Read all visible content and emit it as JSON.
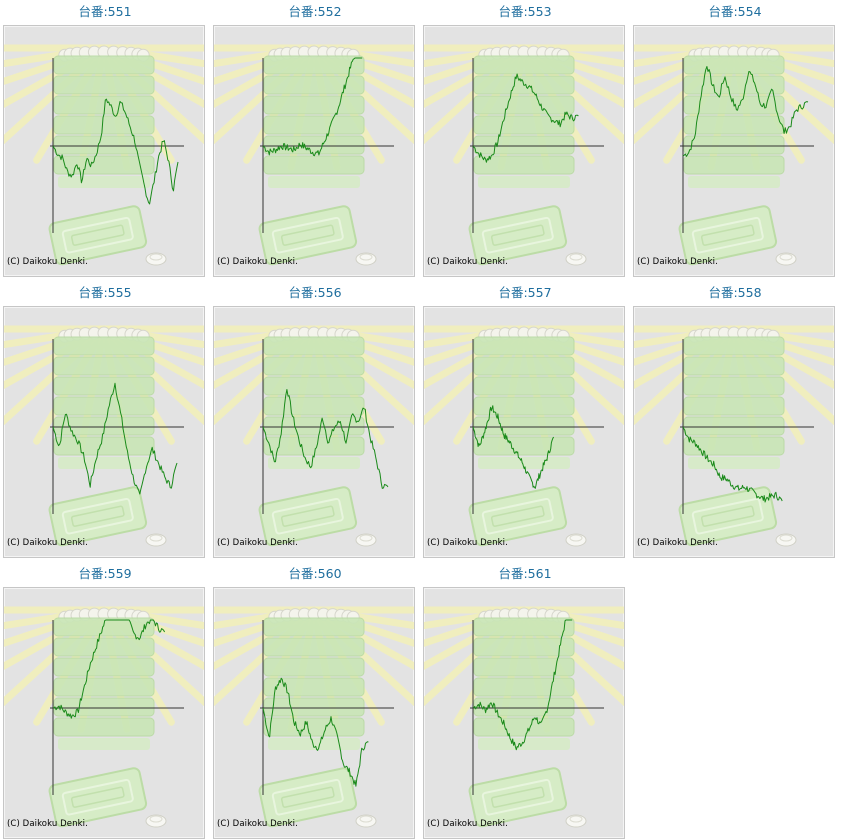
{
  "machines": [
    {
      "label": "台番:551",
      "trend": [
        0,
        -8,
        -12,
        -26,
        -30,
        -16,
        -36,
        -12,
        -20,
        -8,
        10,
        48,
        40,
        30,
        44,
        34,
        20,
        6,
        -20,
        -40,
        -58,
        -36,
        -10,
        6,
        -14,
        -44,
        -16
      ]
    },
    {
      "label": "台番:552",
      "trend": [
        0,
        -6,
        -4,
        0,
        -2,
        -4,
        2,
        -2,
        -6,
        -8,
        6,
        20,
        36,
        56,
        76,
        96,
        110
      ]
    },
    {
      "label": "台番:553",
      "trend": [
        0,
        -8,
        -14,
        -10,
        4,
        28,
        50,
        70,
        64,
        60,
        52,
        40,
        30,
        26,
        22,
        32,
        28,
        30
      ]
    },
    {
      "label": "台番:554",
      "trend": [
        -10,
        -6,
        10,
        50,
        82,
        60,
        48,
        70,
        50,
        36,
        46,
        76,
        64,
        42,
        40,
        56,
        30,
        14,
        20,
        36,
        40,
        44
      ]
    },
    {
      "label": "台番:555",
      "trend": [
        0,
        -20,
        14,
        -4,
        -14,
        -30,
        -58,
        -30,
        -10,
        20,
        44,
        10,
        -26,
        -52,
        -70,
        -40,
        -22,
        -36,
        -50,
        -60,
        -36
      ]
    },
    {
      "label": "台番:556",
      "trend": [
        0,
        -16,
        -36,
        -8,
        40,
        10,
        -12,
        -30,
        -40,
        -20,
        10,
        -16,
        0,
        6,
        -16,
        12,
        6,
        20,
        -10,
        -32,
        -58,
        -60
      ]
    },
    {
      "label": "台番:557",
      "trend": [
        0,
        -20,
        -2,
        20,
        10,
        -8,
        -16,
        -26,
        -36,
        -50,
        -60,
        -44,
        -30,
        -10
      ]
    },
    {
      "label": "台番:558",
      "trend": [
        0,
        -12,
        -16,
        -24,
        -32,
        -38,
        -50,
        -52,
        -58,
        -62,
        -60,
        -64,
        -68,
        -72,
        -70,
        -68,
        -74
      ]
    },
    {
      "label": "台番:559",
      "trend": [
        0,
        2,
        -4,
        -8,
        -4,
        20,
        44,
        62,
        80,
        96,
        108,
        102,
        90,
        74,
        70,
        84,
        90,
        80,
        76
      ]
    },
    {
      "label": "台番:560",
      "trend": [
        0,
        -30,
        20,
        30,
        16,
        -14,
        -26,
        -14,
        -36,
        -40,
        -22,
        -10,
        -30,
        -56,
        -64,
        -78,
        -40,
        -34
      ]
    },
    {
      "label": "台番:561",
      "trend": [
        0,
        4,
        -2,
        6,
        -6,
        -16,
        -30,
        -40,
        -34,
        -22,
        -8,
        -18,
        0,
        30,
        60,
        90,
        100
      ]
    }
  ],
  "copyright_text": "(C) Daikoku Denki.",
  "colors": {
    "line": "#1a8a1a",
    "axis": "#333333",
    "title": "#1f6e9e"
  }
}
